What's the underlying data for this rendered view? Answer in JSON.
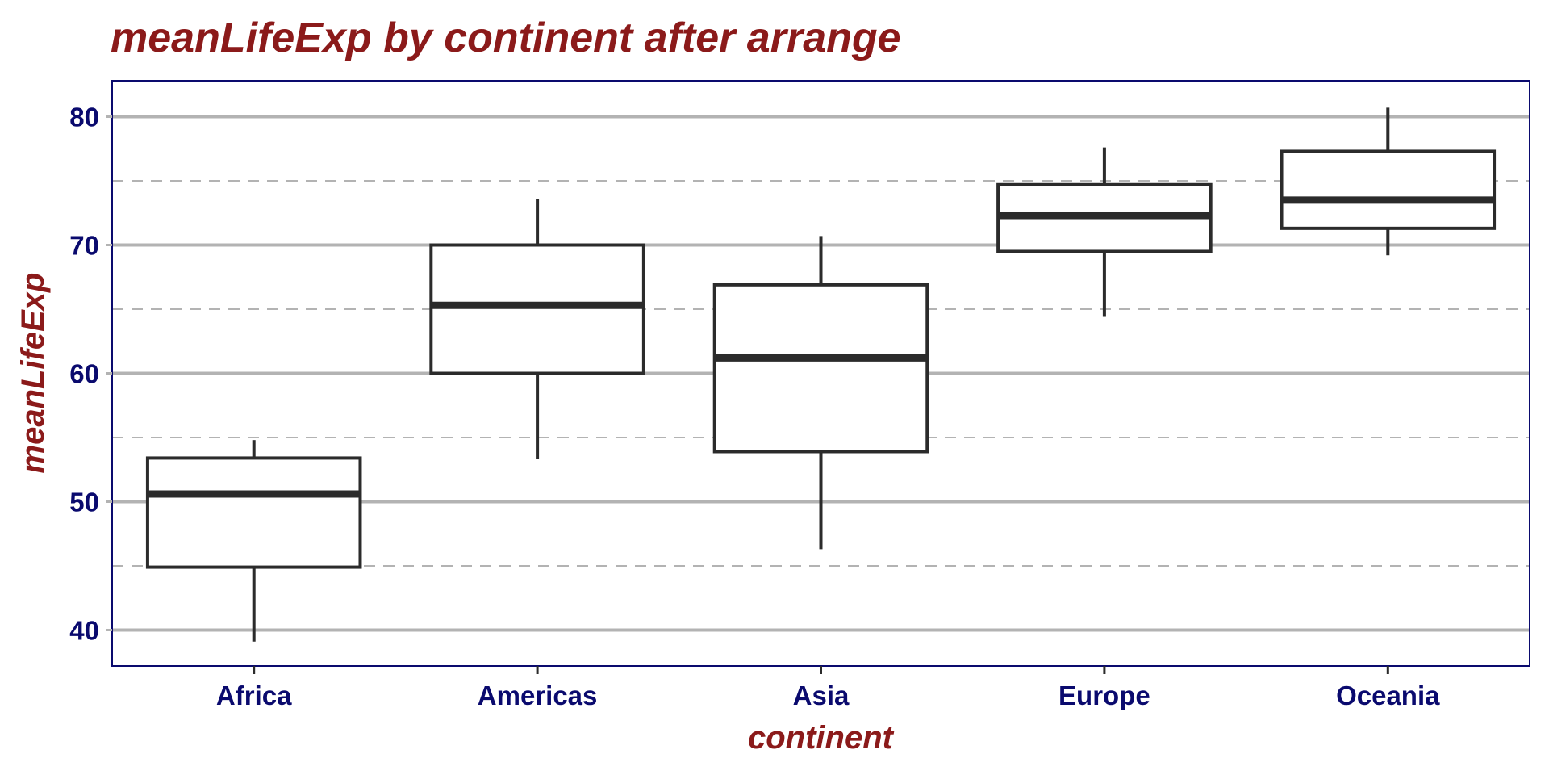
{
  "chart_data": {
    "type": "boxplot",
    "title": "meanLifeExp by continent after arrange",
    "xlabel": "continent",
    "ylabel": "meanLifeExp",
    "categories": [
      "Africa",
      "Americas",
      "Asia",
      "Europe",
      "Oceania"
    ],
    "boxes": [
      {
        "category": "Africa",
        "whisker_low": 39.1,
        "q1": 44.9,
        "median": 50.6,
        "q3": 53.4,
        "whisker_high": 54.8
      },
      {
        "category": "Americas",
        "whisker_low": 53.3,
        "q1": 60.0,
        "median": 65.3,
        "q3": 70.0,
        "whisker_high": 73.6
      },
      {
        "category": "Asia",
        "whisker_low": 46.3,
        "q1": 53.9,
        "median": 61.2,
        "q3": 66.9,
        "whisker_high": 70.7
      },
      {
        "category": "Europe",
        "whisker_low": 64.4,
        "q1": 69.5,
        "median": 72.3,
        "q3": 74.7,
        "whisker_high": 77.6
      },
      {
        "category": "Oceania",
        "whisker_low": 69.2,
        "q1": 71.3,
        "median": 73.5,
        "q3": 77.3,
        "whisker_high": 80.7
      }
    ],
    "y_ticks": [
      40,
      50,
      60,
      70,
      80
    ],
    "y_minor_ticks": [
      45,
      55,
      65,
      75
    ],
    "ylim": [
      37.2,
      82.8
    ],
    "grid": true,
    "legend": "none",
    "colors": {
      "title": "#8b1a1a",
      "axis_title": "#8b1a1a",
      "tick_label": "#0a0a6e",
      "panel_border": "#0a0a6e",
      "grid_major": "#b3b3b3",
      "grid_minor": "#b3b3b3",
      "box_stroke": "#2b2b2b",
      "box_fill": "#ffffff"
    }
  }
}
